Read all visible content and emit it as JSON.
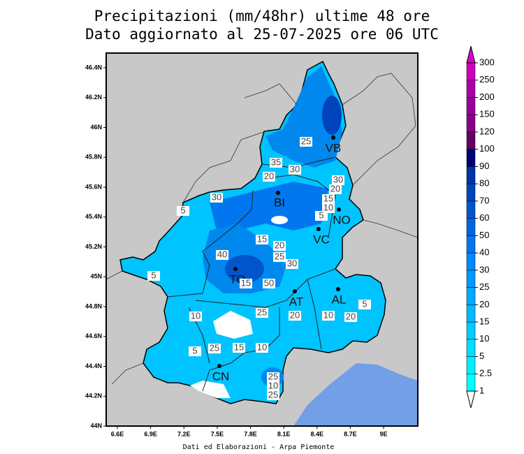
{
  "map": {
    "title_lines": [
      "Precipitazioni (mm/48hr) ultime 48 ore",
      "Dato aggiornato al 25-07-2025 ore 06 UTC"
    ],
    "lat_ticks": [
      {
        "value": 44,
        "label": "44N"
      },
      {
        "value": 44.2,
        "label": "44.2N"
      },
      {
        "value": 44.4,
        "label": "44.4N"
      },
      {
        "value": 44.6,
        "label": "44.6N"
      },
      {
        "value": 44.8,
        "label": "44.8N"
      },
      {
        "value": 45,
        "label": "45N"
      },
      {
        "value": 45.2,
        "label": "45.2N"
      },
      {
        "value": 45.4,
        "label": "45.4N"
      },
      {
        "value": 45.6,
        "label": "45.6N"
      },
      {
        "value": 45.8,
        "label": "45.8N"
      },
      {
        "value": 46,
        "label": "46N"
      },
      {
        "value": 46.2,
        "label": "46.2N"
      },
      {
        "value": 46.4,
        "label": "46.4N"
      }
    ],
    "lon_ticks": [
      {
        "value": 6.6,
        "label": "6.6E"
      },
      {
        "value": 6.9,
        "label": "6.9E"
      },
      {
        "value": 7.2,
        "label": "7.2E"
      },
      {
        "value": 7.5,
        "label": "7.5E"
      },
      {
        "value": 7.8,
        "label": "7.8E"
      },
      {
        "value": 8.1,
        "label": "8.1E"
      },
      {
        "value": 8.4,
        "label": "8.4E"
      },
      {
        "value": 8.7,
        "label": "8.7E"
      },
      {
        "value": 9,
        "label": "9E"
      }
    ],
    "lat_range": [
      44,
      46.4
    ],
    "lon_range": [
      6.6,
      9
    ],
    "colorbar_levels": [
      1,
      2.5,
      5,
      10,
      15,
      20,
      25,
      30,
      40,
      50,
      60,
      70,
      80,
      90,
      100,
      120,
      150,
      200,
      250,
      300
    ],
    "colorbar_colors": [
      "#00ffff",
      "#00eeff",
      "#00ddff",
      "#00ccff",
      "#00bbff",
      "#00aaff",
      "#0099ff",
      "#0088ff",
      "#0077ee",
      "#0066dd",
      "#0055cc",
      "#0044bb",
      "#0033aa",
      "#000077",
      "#660066",
      "#880088",
      "#990099",
      "#aa00aa",
      "#cc00bb"
    ],
    "colorbar_below": "#ffffff",
    "colorbar_above": "#dd00cc",
    "cities": [
      "VB",
      "BI",
      "NO",
      "VC",
      "TO",
      "AT",
      "AL",
      "CN"
    ],
    "contour_labels": [
      25,
      35,
      30,
      20,
      30,
      20,
      15,
      10,
      5,
      30,
      5,
      15,
      20,
      25,
      30,
      40,
      5,
      15,
      50,
      10,
      25,
      20,
      10,
      20,
      5,
      5,
      25,
      15,
      10,
      25,
      10,
      25
    ],
    "footer": "Dati ed Elaborazioni - Arpa Piemonte"
  }
}
